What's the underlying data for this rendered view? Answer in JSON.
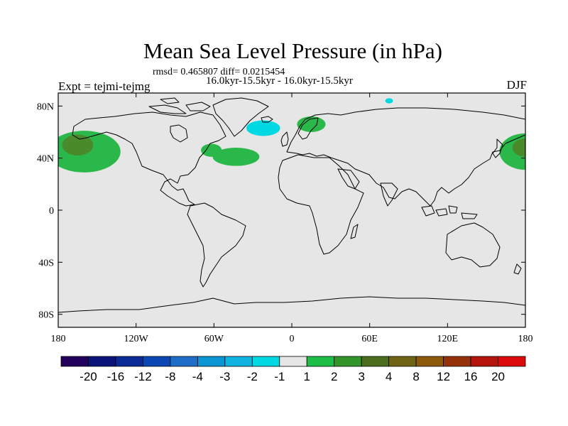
{
  "title": "Mean Sea Level Pressure (in hPa)",
  "stats_line": "rmsd= 0.465807 diff= 0.0215454",
  "period_line": "16.0kyr-15.5kyr - 16.0kyr-15.5kyr",
  "experiment_label": "Expt = tejmi-tejmg",
  "season_label": "DJF",
  "map": {
    "projection": "cylindrical equidistant",
    "lon_range": [
      -180,
      180
    ],
    "lat_range": [
      -90,
      90
    ],
    "lon_ticks": [
      {
        "lon": -180,
        "label": "180"
      },
      {
        "lon": -120,
        "label": "120W"
      },
      {
        "lon": -60,
        "label": "60W"
      },
      {
        "lon": 0,
        "label": "0"
      },
      {
        "lon": 60,
        "label": "60E"
      },
      {
        "lon": 120,
        "label": "120E"
      },
      {
        "lon": 180,
        "label": "180"
      }
    ],
    "lat_ticks": [
      {
        "lat": 80,
        "label": "80N"
      },
      {
        "lat": 40,
        "label": "40N"
      },
      {
        "lat": 0,
        "label": "0"
      },
      {
        "lat": -40,
        "label": "40S"
      },
      {
        "lat": -80,
        "label": "80S"
      }
    ],
    "background_color": "#e6e6e6",
    "anomaly_regions": [
      {
        "name": "north-pacific-positive-west",
        "value": 2,
        "color": "#2ab84a",
        "lon": 180,
        "lat": 45,
        "dlon": 20,
        "dlat": 14
      },
      {
        "name": "north-pacific-positive-west-core",
        "value": 3,
        "color": "#4a8a2a",
        "lon": 180,
        "lat": 48,
        "dlon": 10,
        "dlat": 7
      },
      {
        "name": "north-pacific-positive-east",
        "value": 2,
        "color": "#2ab84a",
        "lon": -160,
        "lat": 45,
        "dlon": 28,
        "dlat": 16
      },
      {
        "name": "north-pacific-positive-east-core",
        "value": 3,
        "color": "#4a8a2a",
        "lon": -165,
        "lat": 50,
        "dlon": 12,
        "dlat": 8
      },
      {
        "name": "north-atlantic-positive",
        "value": 2,
        "color": "#2ab84a",
        "lon": -43,
        "lat": 41,
        "dlon": 18,
        "dlat": 7
      },
      {
        "name": "north-atlantic-positive-west",
        "value": 2,
        "color": "#2ab84a",
        "lon": -62,
        "lat": 46,
        "dlon": 8,
        "dlat": 5
      },
      {
        "name": "scandinavia-positive",
        "value": 2,
        "color": "#2ab84a",
        "lon": 15,
        "lat": 66,
        "dlon": 11,
        "dlat": 6
      },
      {
        "name": "iceland-negative",
        "value": -1,
        "color": "#00d8e4",
        "lon": -22,
        "lat": 63,
        "dlon": 13,
        "dlat": 6
      },
      {
        "name": "arctic-negative",
        "value": -1,
        "color": "#00d8e4",
        "lon": 75,
        "lat": 84,
        "dlon": 3,
        "dlat": 2
      }
    ]
  },
  "colorbar": {
    "colors": [
      "#20005a",
      "#0a1478",
      "#0a2a96",
      "#0a46b4",
      "#1e6ec8",
      "#0a96d2",
      "#10b4e0",
      "#00d8e4",
      "#e6e6e6",
      "#1cbe46",
      "#32962a",
      "#4a6e1e",
      "#6e6414",
      "#8c5a0a",
      "#96320a",
      "#b4140a",
      "#dc0a0a"
    ],
    "labels": [
      "-20",
      "-16",
      "-12",
      "-8",
      "-4",
      "-3",
      "-2",
      "-1",
      "1",
      "2",
      "3",
      "4",
      "8",
      "12",
      "16",
      "20"
    ]
  }
}
